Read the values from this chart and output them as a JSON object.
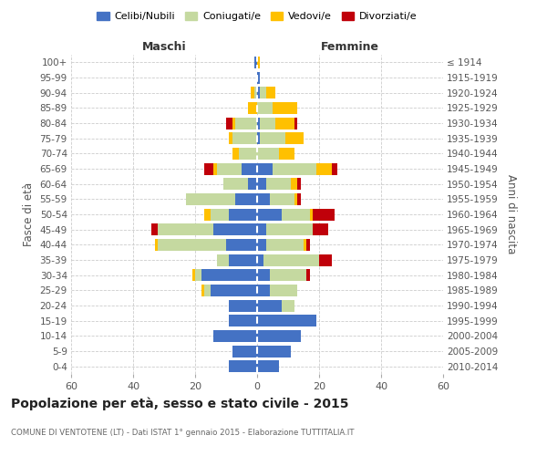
{
  "age_groups": [
    "0-4",
    "5-9",
    "10-14",
    "15-19",
    "20-24",
    "25-29",
    "30-34",
    "35-39",
    "40-44",
    "45-49",
    "50-54",
    "55-59",
    "60-64",
    "65-69",
    "70-74",
    "75-79",
    "80-84",
    "85-89",
    "90-94",
    "95-99",
    "100+"
  ],
  "birth_years": [
    "2010-2014",
    "2005-2009",
    "2000-2004",
    "1995-1999",
    "1990-1994",
    "1985-1989",
    "1980-1984",
    "1975-1979",
    "1970-1974",
    "1965-1969",
    "1960-1964",
    "1955-1959",
    "1950-1954",
    "1945-1949",
    "1940-1944",
    "1935-1939",
    "1930-1934",
    "1925-1929",
    "1920-1924",
    "1915-1919",
    "≤ 1914"
  ],
  "male": {
    "celibi": [
      9,
      8,
      14,
      9,
      9,
      15,
      18,
      9,
      10,
      14,
      9,
      7,
      3,
      5,
      0,
      0,
      0,
      0,
      0,
      0,
      1
    ],
    "coniugati": [
      0,
      0,
      0,
      0,
      0,
      2,
      2,
      4,
      22,
      18,
      6,
      16,
      8,
      8,
      6,
      8,
      7,
      0,
      1,
      0,
      0
    ],
    "vedovi": [
      0,
      0,
      0,
      0,
      0,
      1,
      1,
      0,
      1,
      0,
      2,
      0,
      0,
      1,
      2,
      1,
      1,
      3,
      1,
      0,
      0
    ],
    "divorziati": [
      0,
      0,
      0,
      0,
      0,
      0,
      0,
      0,
      0,
      2,
      0,
      0,
      0,
      3,
      0,
      0,
      2,
      0,
      0,
      0,
      0
    ]
  },
  "female": {
    "nubili": [
      7,
      11,
      14,
      19,
      8,
      4,
      4,
      2,
      3,
      3,
      8,
      4,
      3,
      5,
      0,
      1,
      1,
      0,
      1,
      1,
      0
    ],
    "coniugate": [
      0,
      0,
      0,
      0,
      4,
      9,
      12,
      18,
      12,
      15,
      9,
      8,
      8,
      14,
      7,
      8,
      5,
      5,
      2,
      0,
      0
    ],
    "vedove": [
      0,
      0,
      0,
      0,
      0,
      0,
      0,
      0,
      1,
      0,
      1,
      1,
      2,
      5,
      5,
      6,
      6,
      8,
      3,
      0,
      1
    ],
    "divorziate": [
      0,
      0,
      0,
      0,
      0,
      0,
      1,
      4,
      1,
      5,
      7,
      1,
      1,
      2,
      0,
      0,
      1,
      0,
      0,
      0,
      0
    ]
  },
  "colors": {
    "celibi": "#4472c4",
    "coniugati": "#c5d9a0",
    "vedovi": "#ffc000",
    "divorziati": "#c0000a"
  },
  "xlim": 60,
  "title": "Popolazione per età, sesso e stato civile - 2015",
  "subtitle": "COMUNE DI VENTOTENE (LT) - Dati ISTAT 1° gennaio 2015 - Elaborazione TUTTITALIA.IT",
  "ylabel_left": "Fasce di età",
  "ylabel_right": "Anni di nascita",
  "xlabel_maschi": "Maschi",
  "xlabel_femmine": "Femmine",
  "legend_labels": [
    "Celibi/Nubili",
    "Coniugati/e",
    "Vedovi/e",
    "Divorziati/e"
  ],
  "bg_color": "#ffffff",
  "grid_color": "#cccccc"
}
